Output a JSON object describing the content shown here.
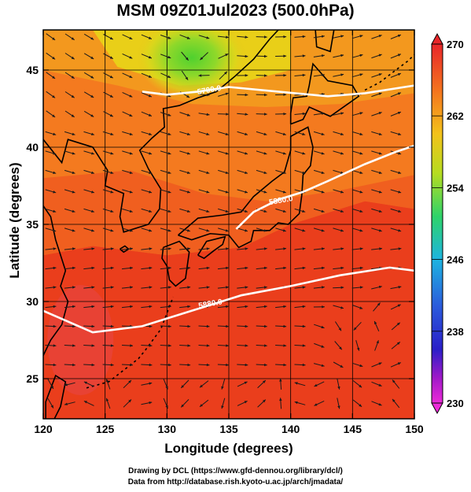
{
  "title": "MSM 09Z01Jul2023 (500.0hPa)",
  "xlabel": "Longitude (degrees)",
  "ylabel": "Latitude  (degrees)",
  "credit_line1": "Drawing by DCL (https://www.gfd-dennou.org/library/dcl/)",
  "credit_line2": "Data from http://database.rish.kyoto-u.ac.jp/arch/jmadata/",
  "x_ticks": [
    "120",
    "125",
    "130",
    "135",
    "140",
    "145",
    "150"
  ],
  "y_ticks": [
    "25",
    "30",
    "35",
    "40",
    "45"
  ],
  "colorbar_ticks": [
    "270",
    "262",
    "254",
    "246",
    "238",
    "230"
  ],
  "contour_labels": [
    "5880.0",
    "5880.0",
    "5700.0"
  ],
  "chart_data": {
    "type": "heatmap",
    "title": "MSM 09Z01Jul2023 (500.0hPa)",
    "xlabel": "Longitude (degrees)",
    "ylabel": "Latitude  (degrees)",
    "xlim": [
      120,
      150
    ],
    "ylim": [
      22.4,
      47.6
    ],
    "x_ticks": [
      120,
      125,
      130,
      135,
      140,
      145,
      150
    ],
    "y_ticks": [
      25,
      30,
      35,
      40,
      45
    ],
    "colorbar": {
      "min": 230,
      "max": 270,
      "ticks": [
        270,
        262,
        254,
        246,
        238,
        230
      ]
    },
    "contours": [
      {
        "label": "5880.0",
        "points": [
          [
            120,
            29.4
          ],
          [
            124,
            28.0
          ],
          [
            128,
            28.4
          ],
          [
            132,
            29.4
          ],
          [
            136,
            30.4
          ],
          [
            140,
            31.0
          ],
          [
            144,
            31.7
          ],
          [
            148,
            32.2
          ],
          [
            150,
            32.0
          ]
        ]
      },
      {
        "label": "5880.0",
        "points": [
          [
            135.6,
            34.7
          ],
          [
            137,
            35.8
          ],
          [
            139,
            36.6
          ],
          [
            141,
            37.1
          ],
          [
            143,
            37.8
          ],
          [
            146,
            38.9
          ],
          [
            148.5,
            39.7
          ],
          [
            150,
            40.1
          ]
        ]
      },
      {
        "label": "5700.0",
        "points": [
          [
            128,
            43.6
          ],
          [
            130,
            43.4
          ],
          [
            132.5,
            43.6
          ],
          [
            135,
            43.9
          ],
          [
            139,
            43.6
          ],
          [
            143,
            43.3
          ],
          [
            146,
            43.5
          ],
          [
            150,
            44.0
          ]
        ]
      }
    ],
    "colors": {
      "warm": "#e8341c",
      "orange": "#f47a1f",
      "yellow": "#e6d817",
      "green": "#72d22c",
      "contour": "#ffffff",
      "coast": "#000000"
    }
  }
}
